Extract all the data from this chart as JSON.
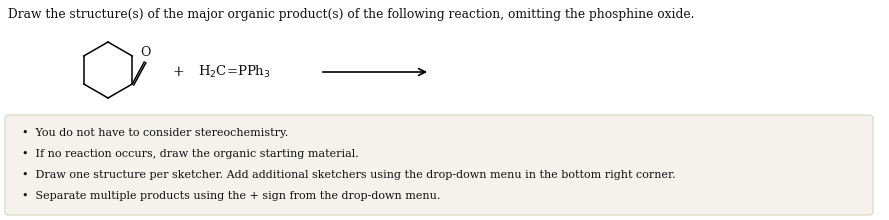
{
  "title": "Draw the structure(s) of the major organic product(s) of the following reaction, omitting the phosphine oxide.",
  "title_fontsize": 8.8,
  "background_color": "#ffffff",
  "box_facecolor": "#f5f2ee",
  "box_edgecolor": "#ccccaa",
  "bullet_points": [
    "You do not have to consider stereochemistry.",
    "If no reaction occurs, draw the organic starting material.",
    "Draw one structure per sketcher. Add additional sketchers using the drop-down menu in the bottom right corner.",
    "Separate multiple products using the + sign from the drop-down menu."
  ],
  "bullet_fontsize": 8.0,
  "text_color": "#111111",
  "ring_color": "#000000",
  "ring_linewidth": 1.1,
  "plus_fontsize": 10,
  "reagent_fontsize": 9.5,
  "arrow_color": "#000000",
  "arrow_linewidth": 1.2
}
